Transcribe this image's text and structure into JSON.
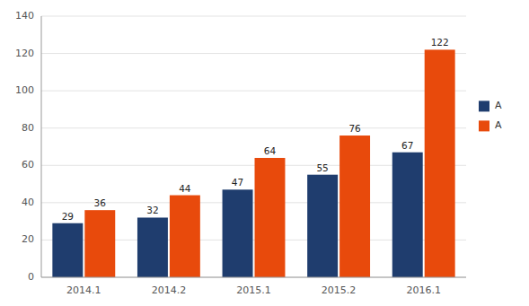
{
  "chart_data": {
    "type": "bar",
    "categories": [
      "2014.1",
      "2014.2",
      "2015.1",
      "2015.2",
      "2016.1"
    ],
    "series": [
      {
        "name": "A",
        "color": "#1F3D6E",
        "values": [
          29,
          32,
          47,
          55,
          67
        ]
      },
      {
        "name": "A",
        "color": "#E84A0C",
        "values": [
          36,
          44,
          64,
          76,
          122
        ]
      }
    ],
    "ylim": [
      0,
      140
    ],
    "yticks": [
      0,
      20,
      40,
      60,
      80,
      100,
      120,
      140
    ],
    "grid": true,
    "legend": "right",
    "data_labels": true
  }
}
